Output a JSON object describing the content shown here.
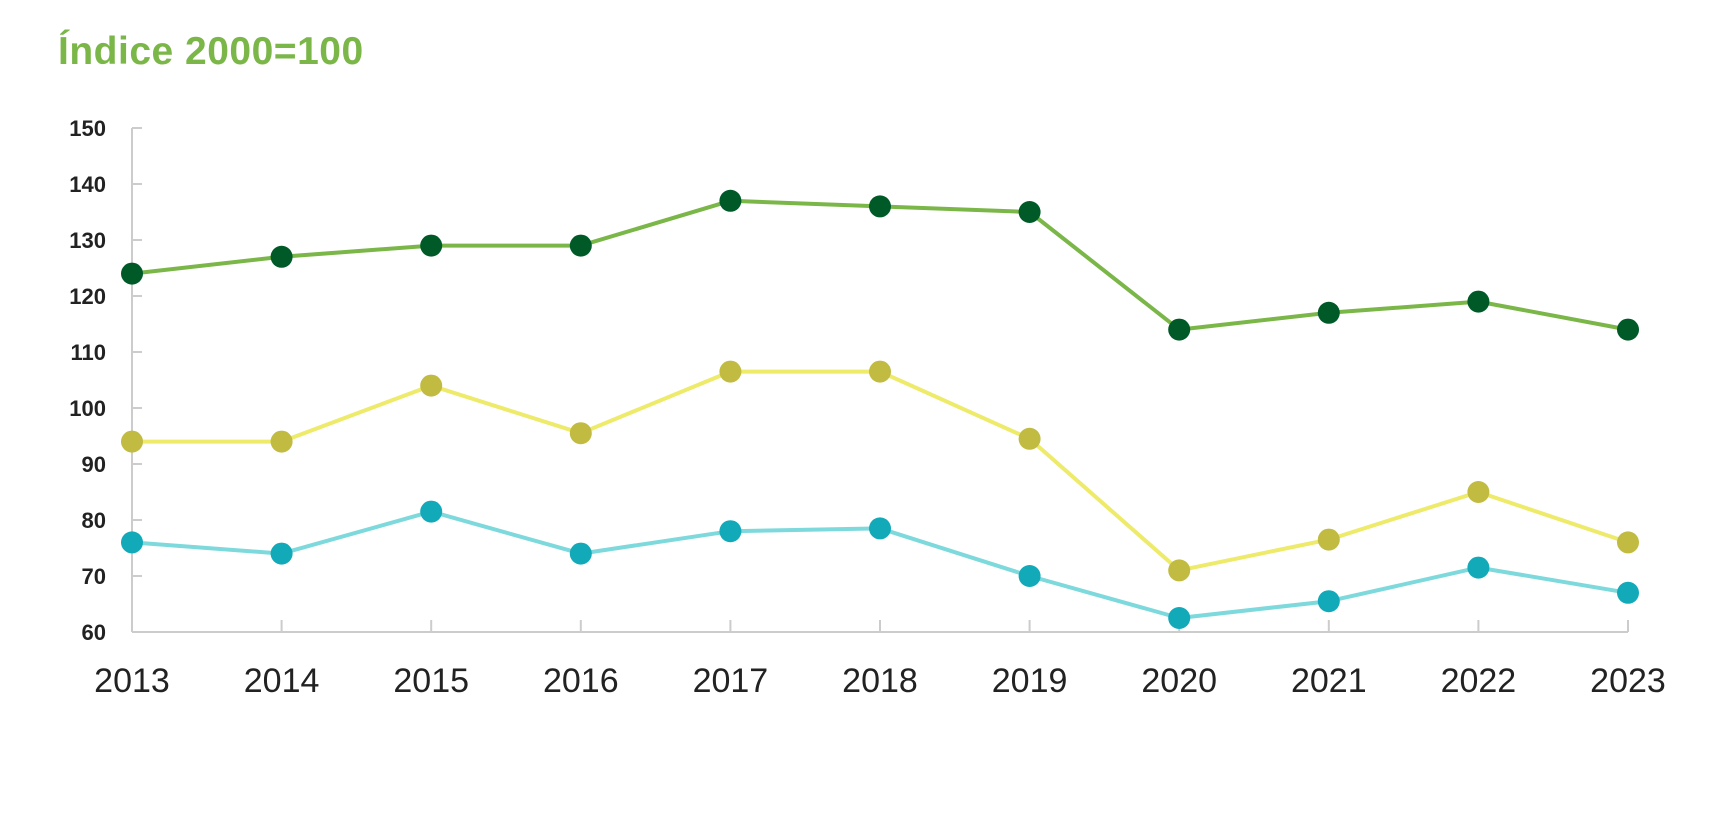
{
  "chart_data": {
    "type": "line",
    "title": "Índice 2000=100",
    "xlabel": "",
    "ylabel": "",
    "categories": [
      "2013",
      "2014",
      "2015",
      "2016",
      "2017",
      "2018",
      "2019",
      "2020",
      "2021",
      "2022",
      "2023"
    ],
    "ylim": [
      60,
      150
    ],
    "yticks": [
      60,
      70,
      80,
      90,
      100,
      110,
      120,
      130,
      140,
      150
    ],
    "grid": false,
    "legend": "none",
    "series": [
      {
        "values": [
          124,
          127,
          129,
          129,
          137,
          136,
          135,
          114,
          117,
          119,
          114
        ],
        "line_color": "#7ab648",
        "marker_color": "#005a28"
      },
      {
        "values": [
          94,
          94,
          104,
          95.5,
          106.5,
          106.5,
          94.5,
          71,
          76.5,
          85,
          76
        ],
        "line_color": "#eeea6a",
        "marker_color": "#c1bb42"
      },
      {
        "values": [
          76,
          74,
          81.5,
          74,
          78,
          78.5,
          70,
          62.5,
          65.5,
          71.5,
          67
        ],
        "line_color": "#7dd9dc",
        "marker_color": "#12a9b9"
      }
    ]
  }
}
